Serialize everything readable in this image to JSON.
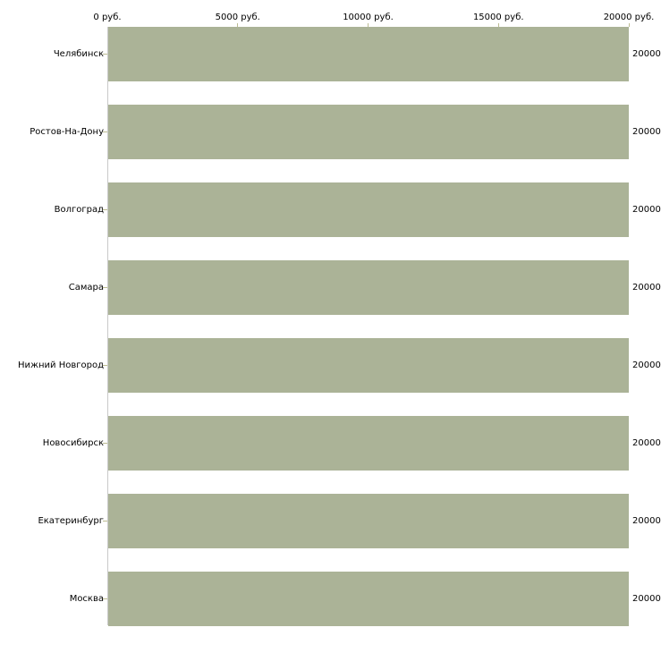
{
  "chart_data": {
    "type": "bar",
    "orientation": "horizontal",
    "title": "",
    "xlabel": "",
    "ylabel": "",
    "grid": false,
    "legend": false,
    "categories": [
      "Челябинск",
      "Ростов-На-Дону",
      "Волгоград",
      "Самара",
      "Нижний Новгород",
      "Новосибирск",
      "Екатеринбург",
      "Москва"
    ],
    "values": [
      20000,
      20000,
      20000,
      20000,
      20000,
      20000,
      20000,
      20000
    ],
    "value_labels": [
      "20000",
      "20000",
      "20000",
      "20000",
      "20000",
      "20000",
      "20000",
      "20000"
    ],
    "x_axis": {
      "position": "top",
      "tick_labels": [
        "0 руб.",
        "5000 руб.",
        "10000 руб.",
        "15000 руб.",
        "20000 руб."
      ],
      "tick_values": [
        0,
        5000,
        10000,
        15000,
        20000
      ],
      "range": [
        0,
        20000
      ]
    },
    "colors": {
      "bar": "#abb397",
      "axis_line": "#c9c9c9",
      "tick": "#bcbc92",
      "text": "#000000",
      "background": "#ffffff"
    }
  }
}
